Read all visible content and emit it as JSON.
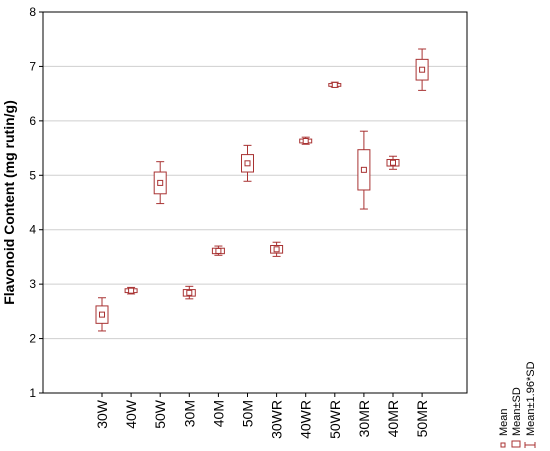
{
  "chart_data": {
    "type": "box",
    "ylabel": "Flavonoid Content (mg rutin/g)",
    "xlabel": "",
    "ylim": [
      1,
      8
    ],
    "yticks": [
      1,
      2,
      3,
      4,
      5,
      6,
      7,
      8
    ],
    "grid": true,
    "categories": [
      "30W",
      "40W",
      "50W",
      "30M",
      "40M",
      "50M",
      "30WR",
      "40WR",
      "50WR",
      "30MR",
      "40MR",
      "50MR"
    ],
    "mean": [
      2.44,
      2.88,
      4.86,
      2.84,
      3.61,
      5.22,
      3.64,
      5.63,
      6.66,
      5.1,
      5.23,
      6.94
    ],
    "sd": [
      0.16,
      0.035,
      0.2,
      0.06,
      0.05,
      0.16,
      0.07,
      0.035,
      0.025,
      0.37,
      0.06,
      0.19
    ],
    "ci_low": [
      2.14,
      2.82,
      4.48,
      2.73,
      3.53,
      4.89,
      3.51,
      5.57,
      6.62,
      4.38,
      5.11,
      6.56
    ],
    "ci_high": [
      2.75,
      2.94,
      5.25,
      2.96,
      3.7,
      5.55,
      3.77,
      5.7,
      6.71,
      5.81,
      5.35,
      7.32
    ],
    "legend": {
      "position": "bottom-right",
      "items": [
        "Mean",
        "Mean±SD",
        "Mean±1.96*SD"
      ]
    },
    "colors": {
      "box": "#a83232",
      "grid": "#cfcfcf",
      "frame": "#000000"
    }
  }
}
